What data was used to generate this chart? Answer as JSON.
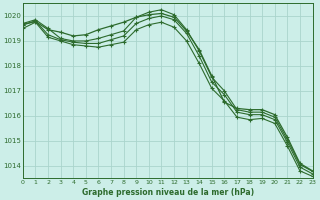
{
  "title": "Graphe pression niveau de la mer (hPa)",
  "bg_color": "#cceee8",
  "grid_color": "#aad4cc",
  "line_color": "#2d6b2d",
  "xlim": [
    0,
    23
  ],
  "ylim": [
    1013.5,
    1020.5
  ],
  "yticks": [
    1014,
    1015,
    1016,
    1017,
    1018,
    1019,
    1020
  ],
  "xticks": [
    0,
    1,
    2,
    3,
    4,
    5,
    6,
    7,
    8,
    9,
    10,
    11,
    12,
    13,
    14,
    15,
    16,
    17,
    18,
    19,
    20,
    21,
    22,
    23
  ],
  "series": [
    [
      1019.7,
      1019.85,
      1019.5,
      1019.1,
      1019.0,
      1019.0,
      1019.1,
      1019.25,
      1019.4,
      1019.95,
      1020.15,
      1020.25,
      1020.05,
      1019.45,
      1018.6,
      1017.55,
      1017.0,
      1016.25,
      1016.15,
      1016.15,
      1015.95,
      1015.05,
      1014.05,
      1013.78
    ],
    [
      1019.65,
      1019.8,
      1019.25,
      1019.05,
      1018.95,
      1018.9,
      1018.9,
      1019.05,
      1019.2,
      1019.7,
      1019.9,
      1020.0,
      1019.85,
      1019.3,
      1018.4,
      1017.35,
      1016.85,
      1016.15,
      1016.05,
      1016.05,
      1015.85,
      1014.95,
      1013.95,
      1013.68
    ],
    [
      1019.5,
      1019.75,
      1019.15,
      1019.0,
      1018.85,
      1018.8,
      1018.75,
      1018.85,
      1018.95,
      1019.45,
      1019.65,
      1019.75,
      1019.55,
      1019.0,
      1018.1,
      1017.1,
      1016.6,
      1015.95,
      1015.85,
      1015.9,
      1015.7,
      1014.8,
      1013.8,
      1013.58
    ]
  ],
  "series_smooth": [
    1019.65,
    1019.78,
    1019.45,
    1019.35,
    1019.2,
    1019.25,
    1019.45,
    1019.6,
    1019.75,
    1019.95,
    1020.05,
    1020.1,
    1019.95,
    1019.4,
    1018.65,
    1017.6,
    1016.55,
    1016.3,
    1016.25,
    1016.25,
    1016.05,
    1015.15,
    1014.1,
    1013.8
  ]
}
